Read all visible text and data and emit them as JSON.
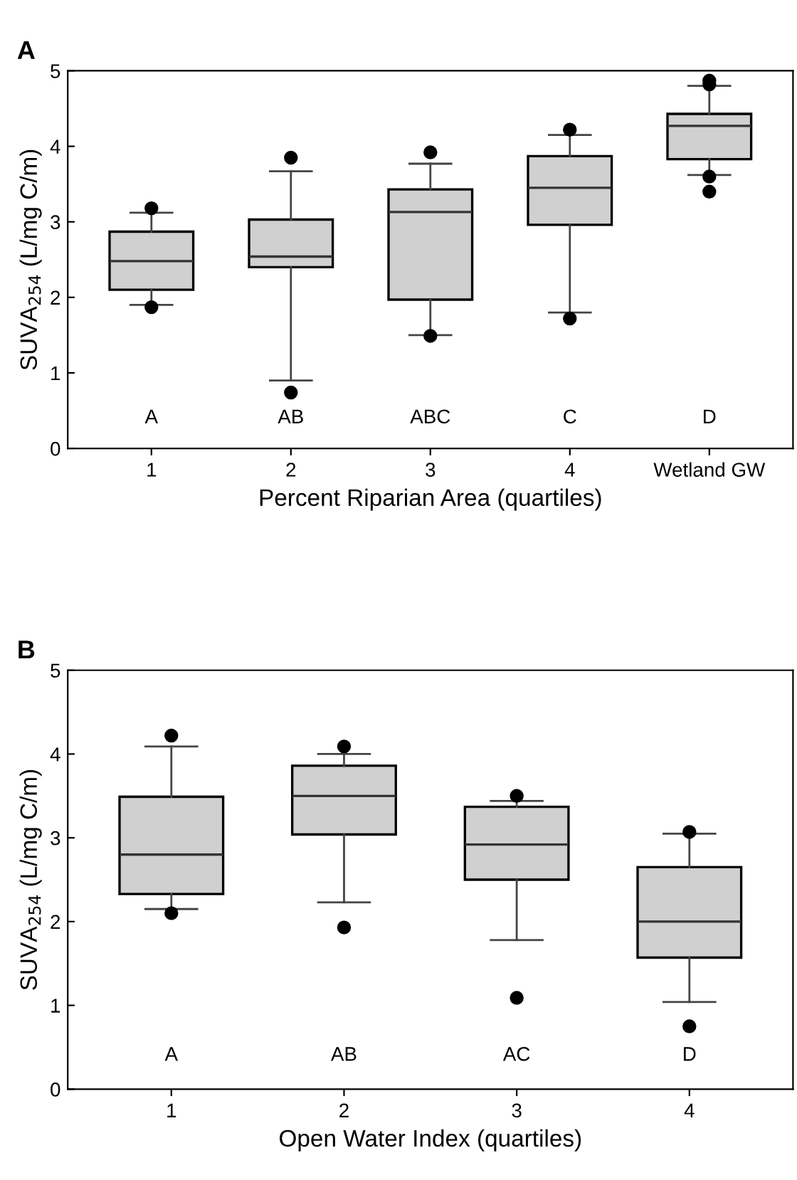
{
  "chart_data": [
    {
      "type": "box",
      "title": "A",
      "xlabel": "Percent Riparian Area (quartiles)",
      "ylabel": "SUVA$_{254}$ (L/mg C/m)",
      "categories": [
        "1",
        "2",
        "3",
        "4",
        "Wetland GW"
      ],
      "ylim": [
        0,
        5
      ],
      "yticks": [
        0,
        1,
        2,
        3,
        4,
        5
      ],
      "grid": false,
      "color": "#d0d0d0",
      "boxes": [
        {
          "low": 1.9,
          "q1": 2.1,
          "median": 2.48,
          "q3": 2.87,
          "high": 3.12,
          "outliers": [
            3.18,
            1.87
          ]
        },
        {
          "low": 0.9,
          "q1": 2.4,
          "median": 2.54,
          "q3": 3.03,
          "high": 3.67,
          "outliers": [
            3.85,
            0.74
          ]
        },
        {
          "low": 1.5,
          "q1": 1.97,
          "median": 3.13,
          "q3": 3.43,
          "high": 3.77,
          "outliers": [
            3.92,
            1.49
          ]
        },
        {
          "low": 1.8,
          "q1": 2.96,
          "median": 3.45,
          "q3": 3.87,
          "high": 4.15,
          "outliers": [
            4.22,
            1.72
          ]
        },
        {
          "low": 3.62,
          "q1": 3.83,
          "median": 4.27,
          "q3": 4.43,
          "high": 4.8,
          "outliers": [
            4.87,
            4.82,
            3.6,
            3.4
          ]
        }
      ],
      "annotations": [
        "A",
        "AB",
        "ABC",
        "C",
        "D"
      ]
    },
    {
      "type": "box",
      "title": "B",
      "xlabel": "Open Water Index (quartiles)",
      "ylabel": "SUVA$_{254}$ (L/mg C/m)",
      "categories": [
        "1",
        "2",
        "3",
        "4"
      ],
      "ylim": [
        0,
        5
      ],
      "yticks": [
        0,
        1,
        2,
        3,
        4,
        5
      ],
      "grid": false,
      "color": "#d0d0d0",
      "boxes": [
        {
          "low": 2.15,
          "q1": 2.33,
          "median": 2.8,
          "q3": 3.49,
          "high": 4.09,
          "outliers": [
            4.22,
            2.1
          ]
        },
        {
          "low": 2.23,
          "q1": 3.04,
          "median": 3.5,
          "q3": 3.86,
          "high": 4.0,
          "outliers": [
            4.09,
            1.93
          ]
        },
        {
          "low": 1.78,
          "q1": 2.5,
          "median": 2.92,
          "q3": 3.37,
          "high": 3.44,
          "outliers": [
            3.5,
            1.09
          ]
        },
        {
          "low": 1.04,
          "q1": 1.57,
          "median": 2.0,
          "q3": 2.65,
          "high": 3.05,
          "outliers": [
            3.07,
            0.75
          ]
        }
      ],
      "annotations": [
        "A",
        "AB",
        "AC",
        "D"
      ]
    }
  ]
}
